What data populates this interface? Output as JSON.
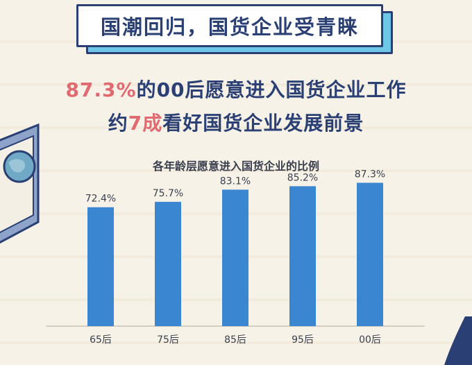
{
  "banner": {
    "title": "国潮回归，国货企业受青睐"
  },
  "headline": {
    "line1_highlight": "87.3%",
    "line1_rest": "的00后愿意进入国货企业工作",
    "line2_pre": "约",
    "line2_highlight": "7成",
    "line2_rest": "看好国货企业发展前景"
  },
  "colors": {
    "bar": "#3b86d1",
    "highlight": "#e06a6f",
    "navy": "#2a3f73"
  },
  "chart_data": {
    "type": "bar",
    "title": "各年龄层愿意进入国货企业的比例",
    "categories": [
      "65后",
      "75后",
      "85后",
      "95后",
      "00后"
    ],
    "values": [
      72.4,
      75.7,
      83.1,
      85.2,
      87.3
    ],
    "value_labels": [
      "72.4%",
      "75.7%",
      "83.1%",
      "85.2%",
      "87.3%"
    ],
    "ylim": [
      0,
      90
    ],
    "grid": false,
    "legend": "none"
  }
}
